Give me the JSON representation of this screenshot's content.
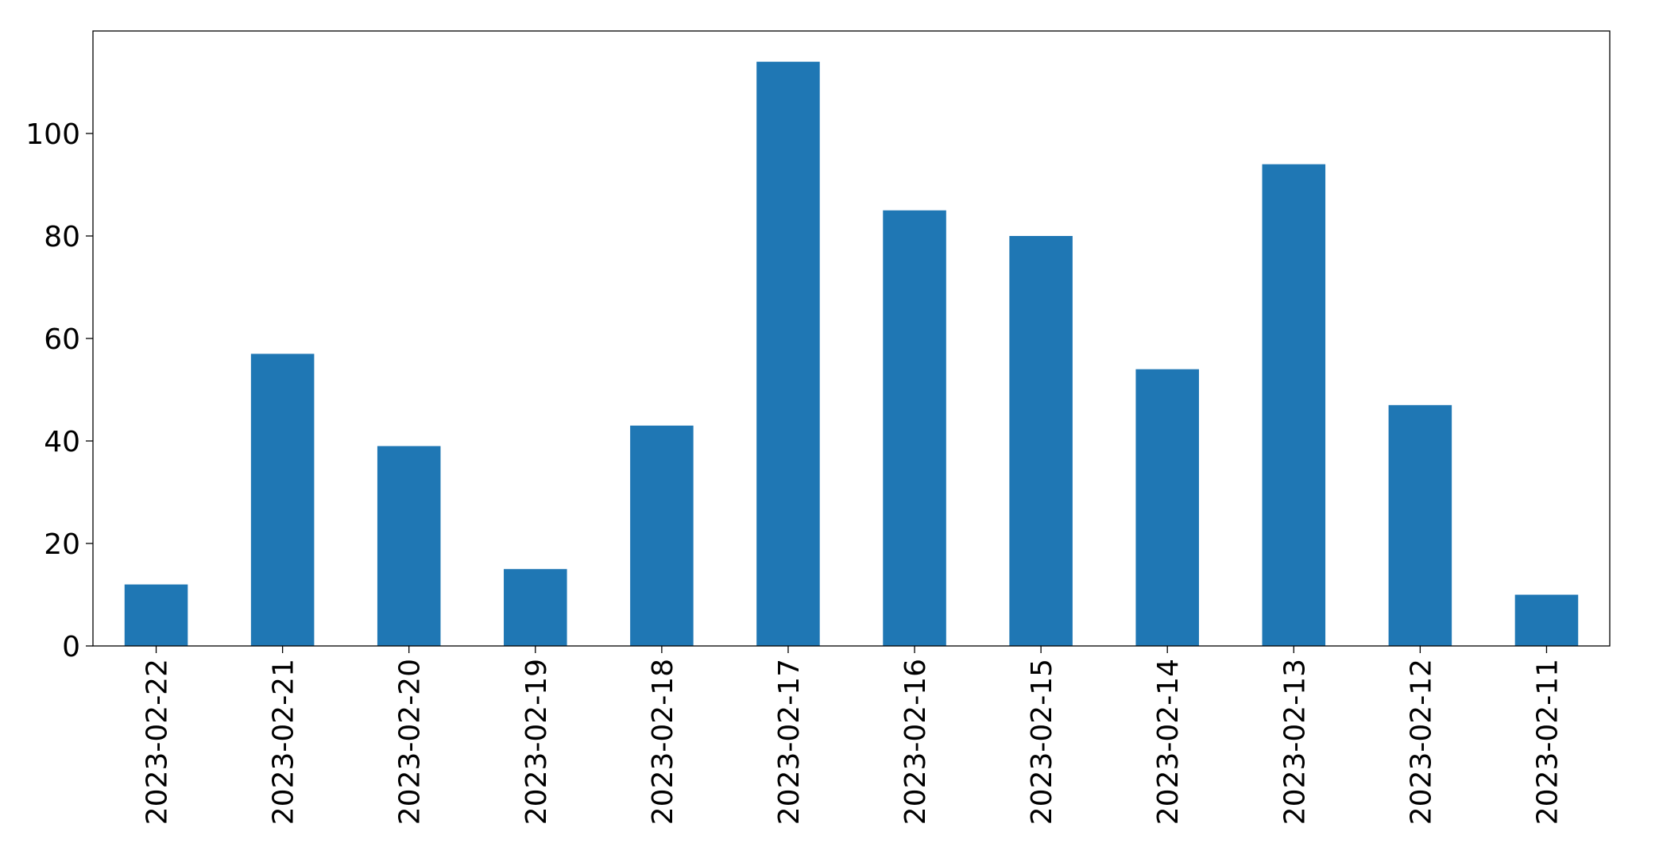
{
  "chart_data": {
    "type": "bar",
    "categories": [
      "2023-02-22",
      "2023-02-21",
      "2023-02-20",
      "2023-02-19",
      "2023-02-18",
      "2023-02-17",
      "2023-02-16",
      "2023-02-15",
      "2023-02-14",
      "2023-02-13",
      "2023-02-12",
      "2023-02-11"
    ],
    "values": [
      12,
      57,
      39,
      15,
      43,
      114,
      85,
      80,
      54,
      94,
      47,
      10
    ],
    "color": "#1f77b4",
    "ylim": [
      0,
      120
    ],
    "yticks": [
      0,
      20,
      40,
      60,
      80,
      100
    ],
    "grid": false
  }
}
